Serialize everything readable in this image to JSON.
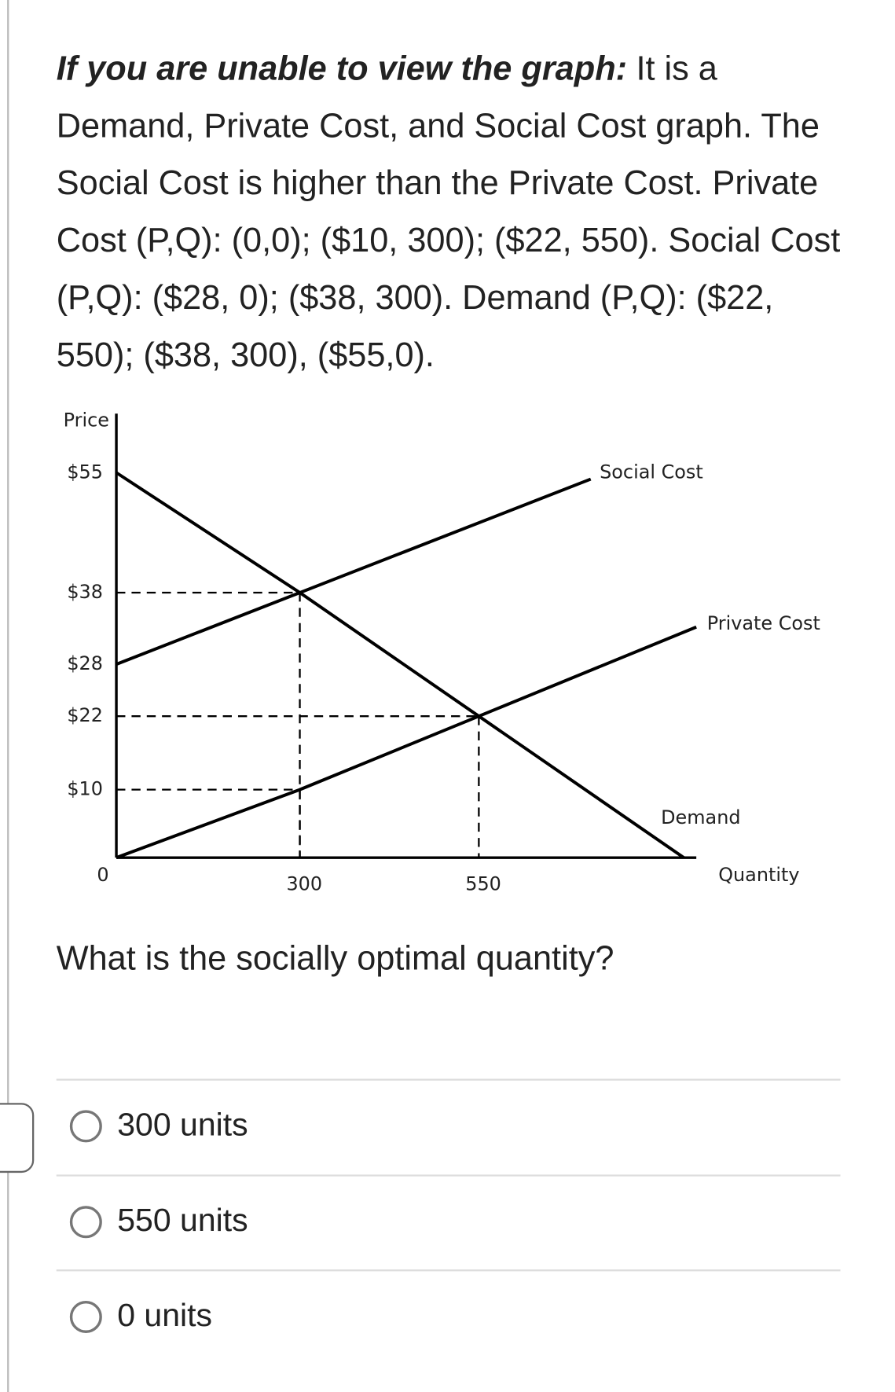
{
  "intro": {
    "lead": "If you are unable to view the graph:",
    "text": "It is a Demand, Private Cost, and Social Cost graph. The Social Cost is higher than the Private Cost. Private Cost (P,Q): (0,0); ($10, 300); ($22, 550). Social Cost (P,Q): ($28, 0); ($38, 300).  Demand (P,Q): ($22, 550); ($38, 300), ($55,0)."
  },
  "chart_data": {
    "type": "line",
    "y_label": "Price",
    "x_label": "Quantity",
    "xticks": [
      0,
      300,
      550
    ],
    "yticks": [
      {
        "value": 10,
        "label": "$10"
      },
      {
        "value": 22,
        "label": "$22"
      },
      {
        "value": 28,
        "label": "$28"
      },
      {
        "value": 38,
        "label": "$38"
      },
      {
        "value": 55,
        "label": "$55"
      }
    ],
    "series": [
      {
        "name": "Social Cost",
        "color": "#000000",
        "x": [
          0,
          300
        ],
        "values": [
          28,
          38
        ]
      },
      {
        "name": "Private Cost",
        "color": "#000000",
        "x": [
          0,
          300,
          550
        ],
        "values": [
          0,
          10,
          22
        ]
      },
      {
        "name": "Demand",
        "color": "#000000",
        "x": [
          0,
          300,
          550
        ],
        "values": [
          55,
          38,
          22
        ]
      }
    ]
  },
  "question": "What is the socially optimal quantity?",
  "options": [
    "300 units",
    "550 units",
    "0 units"
  ]
}
